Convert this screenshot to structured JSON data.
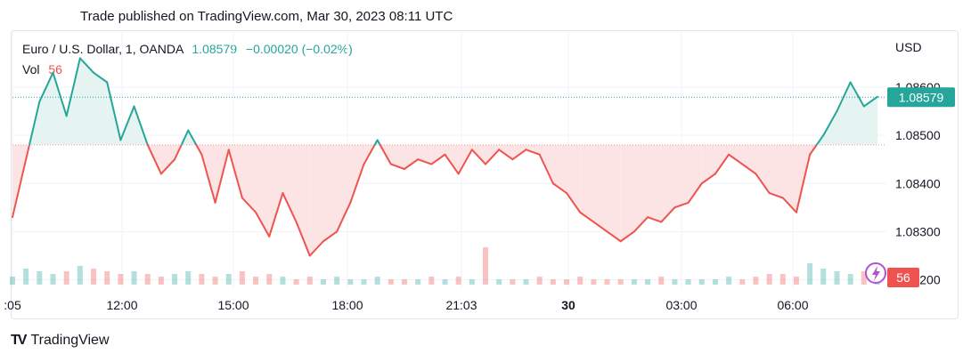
{
  "header": {
    "published": "Trade published on TradingView.com, Mar 30, 2023 08:11 UTC"
  },
  "legend": {
    "symbol": "Euro / U.S. Dollar, 1, OANDA",
    "price": "1.08579",
    "change": "−0.00020 (−0.02%)",
    "vol_label": "Vol",
    "vol_value": "56"
  },
  "axis": {
    "currency": "USD",
    "y_ticks": [
      "1.08600",
      "1.08500",
      "1.08400",
      "1.08300",
      "1.08200"
    ],
    "x_ticks": [
      ":05",
      "12:00",
      "15:00",
      "18:00",
      "21:03",
      "30",
      "03:00",
      "06:00"
    ],
    "price_badge": "1.08579",
    "vol_badge": "56"
  },
  "footer": {
    "brand": "TradingView",
    "logo": "TV"
  },
  "colors": {
    "up": "#26a69a",
    "down": "#ef5350",
    "grid": "#f0f3fa",
    "baseline_up_fill": "#e6f4f1",
    "baseline_down_fill": "#fde4e4"
  },
  "chart_data": {
    "type": "baseline-line",
    "symbol": "EURUSD",
    "timeframe": "1",
    "baseline": 1.0848,
    "last": 1.08579,
    "ylim": [
      1.0819,
      1.0867
    ],
    "x": [
      "10:05",
      "10:30",
      "11:00",
      "11:15",
      "11:30",
      "11:45",
      "12:00",
      "12:15",
      "12:30",
      "13:00",
      "13:15",
      "13:30",
      "13:45",
      "14:00",
      "14:15",
      "14:30",
      "14:45",
      "15:00",
      "15:15",
      "15:30",
      "15:45",
      "16:00",
      "16:15",
      "16:30",
      "16:45",
      "17:00",
      "17:15",
      "17:30",
      "17:45",
      "18:00",
      "18:30",
      "19:00",
      "19:30",
      "20:00",
      "20:30",
      "21:00",
      "21:30",
      "22:00",
      "22:30",
      "23:00",
      "23:30",
      "00:00",
      "00:30",
      "01:00",
      "01:30",
      "02:00",
      "02:30",
      "03:00",
      "03:15",
      "03:30",
      "04:00",
      "04:30",
      "05:00",
      "05:30",
      "06:00",
      "06:15",
      "06:30",
      "06:45",
      "07:00",
      "07:15",
      "07:30",
      "07:45",
      "08:00",
      "08:05",
      "08:10"
    ],
    "values": [
      1.0833,
      1.0845,
      1.0857,
      1.0863,
      1.0854,
      1.0866,
      1.0863,
      1.0861,
      1.0849,
      1.0856,
      1.0848,
      1.0842,
      1.0845,
      1.0851,
      1.0846,
      1.0836,
      1.0847,
      1.0837,
      1.0834,
      1.0829,
      1.0838,
      1.0832,
      1.0825,
      1.0828,
      1.083,
      1.0836,
      1.0844,
      1.0849,
      1.0844,
      1.0843,
      1.0845,
      1.0844,
      1.0846,
      1.0842,
      1.0847,
      1.0844,
      1.0847,
      1.0845,
      1.0847,
      1.0846,
      1.084,
      1.0838,
      1.0834,
      1.0832,
      1.083,
      1.0828,
      1.083,
      1.0833,
      1.0832,
      1.0835,
      1.0836,
      1.084,
      1.0842,
      1.0846,
      1.0844,
      1.0842,
      1.0838,
      1.0837,
      1.0834,
      1.0846,
      1.085,
      1.0855,
      1.0861,
      1.0856,
      1.0858
    ],
    "volume": [
      3,
      6,
      5,
      4,
      5,
      7,
      6,
      5,
      4,
      5,
      4,
      3,
      4,
      5,
      4,
      3,
      4,
      5,
      3,
      4,
      3,
      2,
      3,
      2,
      3,
      2,
      2,
      3,
      2,
      2,
      2,
      3,
      2,
      3,
      2,
      14,
      2,
      2,
      2,
      3,
      2,
      2,
      3,
      2,
      2,
      2,
      2,
      2,
      3,
      2,
      2,
      2,
      2,
      3,
      2,
      3,
      4,
      4,
      3,
      8,
      6,
      5,
      4,
      5,
      4
    ]
  }
}
